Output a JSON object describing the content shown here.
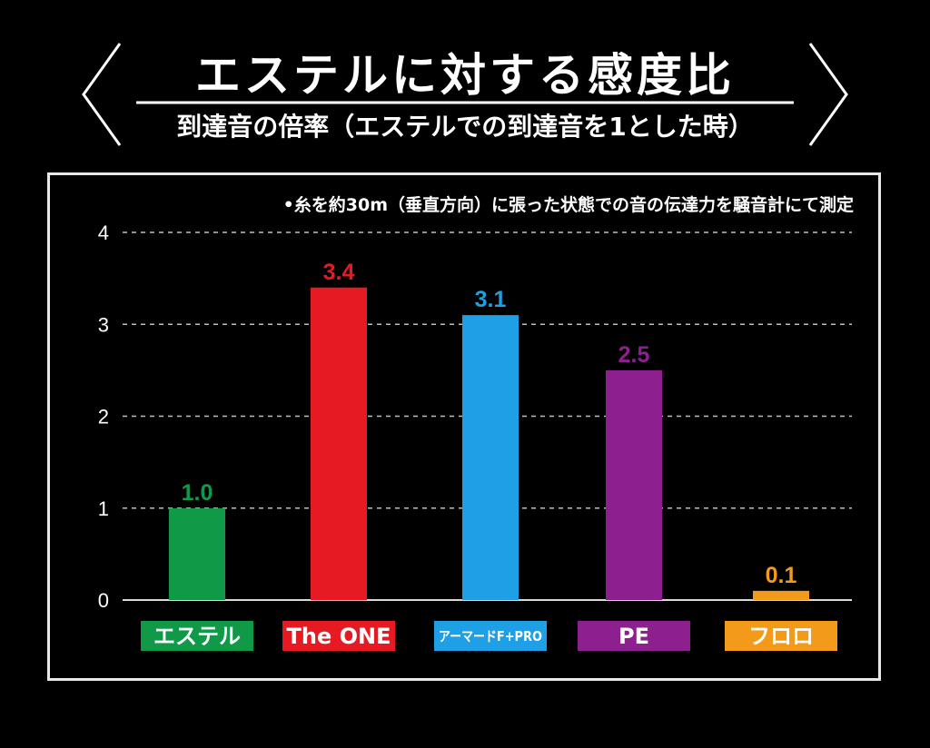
{
  "header": {
    "title": "エステルに対する感度比",
    "subtitle": "到達音の倍率（エステルでの到達音を1とした時）"
  },
  "note": "•糸を約30m（垂直方向）に張った状態での音の伝達力を騒音計にて測定",
  "chart_data": {
    "type": "bar",
    "categories": [
      "エステル",
      "The ONE",
      "アーマードF+PRO",
      "PE",
      "フロロ"
    ],
    "values": [
      1.0,
      3.4,
      3.1,
      2.5,
      0.1
    ],
    "value_labels": [
      "1.0",
      "3.4",
      "3.1",
      "2.5",
      "0.1"
    ],
    "colors": [
      "#109a48",
      "#e61a23",
      "#1f9fe6",
      "#8e1f8e",
      "#f39a1a"
    ],
    "ylim": [
      0,
      4
    ],
    "yticks": [
      0,
      1,
      2,
      3,
      4
    ],
    "grid": true,
    "legend": "none"
  }
}
